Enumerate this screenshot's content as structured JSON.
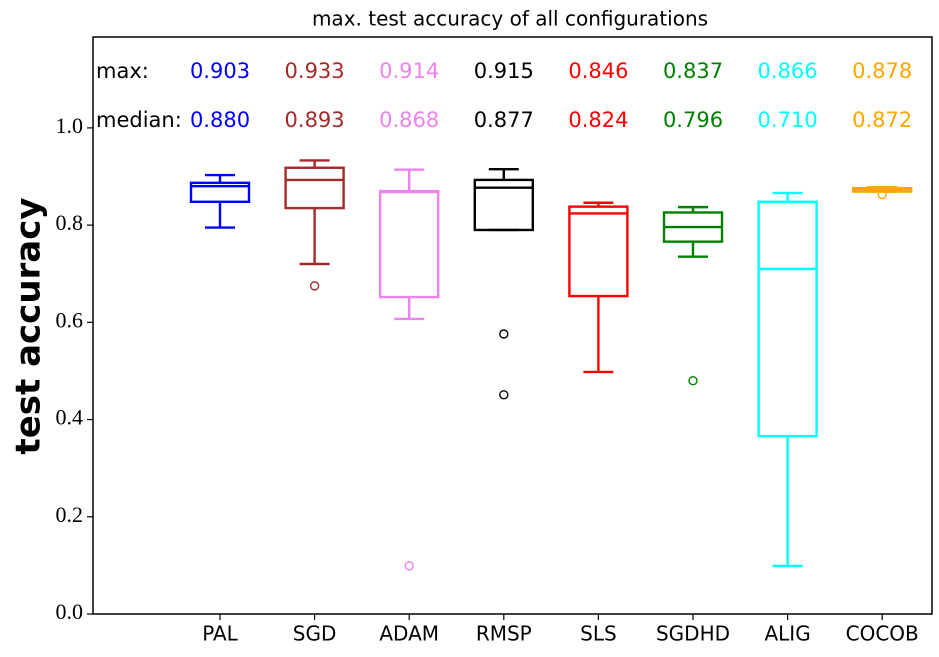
{
  "chart_data": {
    "type": "box",
    "title": "max. test accuracy of all configurations",
    "y_label": "test accuracy",
    "categories": [
      "PAL",
      "SGD",
      "ADAM",
      "RMSP",
      "SLS",
      "SGDHD",
      "ALIG",
      "COCOB"
    ],
    "colors": [
      "#0000ff",
      "#a52a2a",
      "#ee82ee",
      "#000000",
      "#ff0000",
      "#008000",
      "#00ffff",
      "#ffa500"
    ],
    "boxes": [
      {
        "whislo": 0.795,
        "q1": 0.848,
        "med": 0.88,
        "q3": 0.887,
        "whishi": 0.903,
        "fliers": []
      },
      {
        "whislo": 0.72,
        "q1": 0.835,
        "med": 0.893,
        "q3": 0.918,
        "whishi": 0.933,
        "fliers": [
          0.675
        ]
      },
      {
        "whislo": 0.607,
        "q1": 0.652,
        "med": 0.868,
        "q3": 0.87,
        "whishi": 0.914,
        "fliers": [
          0.099
        ]
      },
      {
        "whislo": 0.79,
        "q1": 0.79,
        "med": 0.877,
        "q3": 0.893,
        "whishi": 0.915,
        "fliers": [
          0.576,
          0.451
        ]
      },
      {
        "whislo": 0.498,
        "q1": 0.654,
        "med": 0.824,
        "q3": 0.838,
        "whishi": 0.846,
        "fliers": []
      },
      {
        "whislo": 0.735,
        "q1": 0.766,
        "med": 0.796,
        "q3": 0.826,
        "whishi": 0.837,
        "fliers": [
          0.48
        ]
      },
      {
        "whislo": 0.099,
        "q1": 0.366,
        "med": 0.71,
        "q3": 0.848,
        "whishi": 0.866,
        "fliers": []
      },
      {
        "whislo": 0.869,
        "q1": 0.869,
        "med": 0.872,
        "q3": 0.876,
        "whishi": 0.878,
        "fliers": [
          0.863
        ]
      }
    ],
    "max_title": "max:",
    "max_labels": [
      "0.903",
      "0.933",
      "0.914",
      "0.915",
      "0.846",
      "0.837",
      "0.866",
      "0.878"
    ],
    "median_title": "median:",
    "median_labels": [
      "0.880",
      "0.893",
      "0.868",
      "0.877",
      "0.824",
      "0.796",
      "0.710",
      "0.872"
    ],
    "ylim": [
      0,
      1.187
    ],
    "yticks": [
      {
        "value": 0,
        "label": "0.0"
      },
      0.2,
      0.4,
      0.6,
      0.8,
      {
        "value": 1,
        "label": "1.0"
      }
    ]
  }
}
